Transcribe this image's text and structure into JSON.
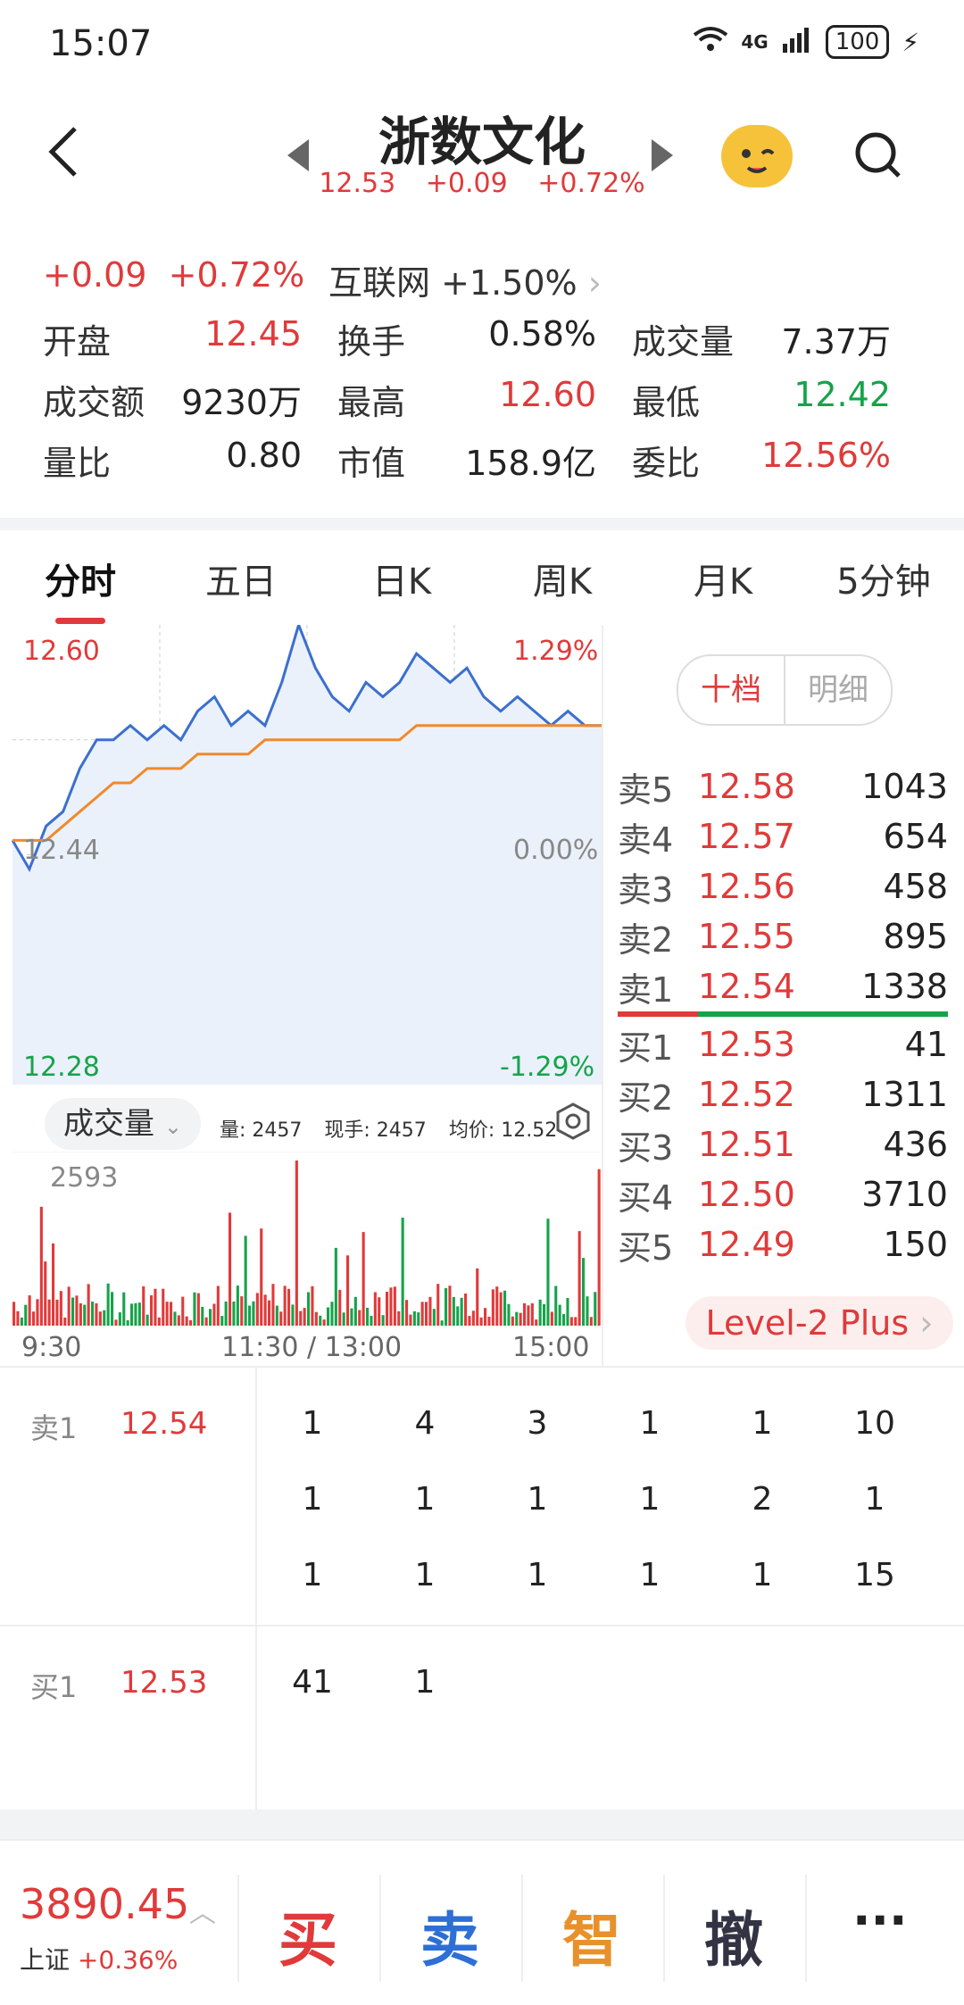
{
  "status": {
    "time": "15:07",
    "network": "4G",
    "battery": "100"
  },
  "header": {
    "title": "浙数文化",
    "price": "12.53",
    "change": "+0.09",
    "change_pct": "+0.72%"
  },
  "summary": {
    "change": "+0.09",
    "change_pct": "+0.72%",
    "sector": "互联网 +1.50%",
    "rows": [
      [
        {
          "label": "开盘",
          "value": "12.45",
          "color": "red"
        },
        {
          "label": "换手",
          "value": "0.58%",
          "color": "black"
        },
        {
          "label": "成交量",
          "value": "7.37万",
          "color": "black"
        }
      ],
      [
        {
          "label": "成交额",
          "value": "9230万",
          "color": "black"
        },
        {
          "label": "最高",
          "value": "12.60",
          "color": "red"
        },
        {
          "label": "最低",
          "value": "12.42",
          "color": "green"
        }
      ],
      [
        {
          "label": "量比",
          "value": "0.80",
          "color": "black"
        },
        {
          "label": "市值",
          "value": "158.9亿",
          "color": "black"
        },
        {
          "label": "委比",
          "value": "12.56%",
          "color": "red"
        }
      ]
    ]
  },
  "tabs": [
    "分时",
    "五日",
    "日K",
    "周K",
    "月K",
    "5分钟"
  ],
  "chart": {
    "ymax_label": "12.60",
    "ymid_label": "12.44",
    "ymin_label": "12.28",
    "pmax_label": "1.29%",
    "pmid_label": "0.00%",
    "pmin_label": "-1.29%",
    "vol_max_label": "2593",
    "vol_pill": "成交量",
    "vol_info": [
      "量: 2457",
      "现手: 2457",
      "均价: 12.52"
    ],
    "time_labels": [
      "9:30",
      "11:30 / 13:00",
      "15:00"
    ]
  },
  "chart_data": {
    "type": "line",
    "series": [
      {
        "name": "",
        "values": [
          12.45,
          12.43,
          12.46,
          12.47,
          12.5,
          12.52,
          12.52,
          12.53,
          12.52,
          12.53,
          12.52,
          12.54,
          12.55,
          12.53,
          12.54,
          12.53,
          12.56,
          12.6,
          12.57,
          12.55,
          12.54,
          12.56,
          12.55,
          12.56,
          12.58,
          12.57,
          12.56,
          12.57,
          12.55,
          12.54,
          12.55,
          12.54,
          12.53,
          12.54,
          12.53,
          12.53
        ]
      },
      {
        "name": "",
        "values": [
          12.45,
          12.45,
          12.45,
          12.46,
          12.47,
          12.48,
          12.49,
          12.49,
          12.5,
          12.5,
          12.5,
          12.51,
          12.51,
          12.51,
          12.51,
          12.52,
          12.52,
          12.52,
          12.52,
          12.52,
          12.52,
          12.52,
          12.52,
          12.52,
          12.53,
          12.53,
          12.53,
          12.53,
          12.53,
          12.53,
          12.53,
          12.53,
          12.53,
          12.53,
          12.53,
          12.53
        ]
      }
    ],
    "ylim": [
      12.28,
      12.6
    ],
    "volume_max": 2593
  },
  "orderbook": {
    "tab_active": "十档",
    "tab_other": "明细",
    "asks": [
      {
        "label": "卖5",
        "price": "12.58",
        "vol": "1043"
      },
      {
        "label": "卖4",
        "price": "12.57",
        "vol": "654"
      },
      {
        "label": "卖3",
        "price": "12.56",
        "vol": "458"
      },
      {
        "label": "卖2",
        "price": "12.55",
        "vol": "895"
      },
      {
        "label": "卖1",
        "price": "12.54",
        "vol": "1338"
      }
    ],
    "bids": [
      {
        "label": "买1",
        "price": "12.53",
        "vol": "41"
      },
      {
        "label": "买2",
        "price": "12.52",
        "vol": "1311"
      },
      {
        "label": "买3",
        "price": "12.51",
        "vol": "436"
      },
      {
        "label": "买4",
        "price": "12.50",
        "vol": "3710"
      },
      {
        "label": "买5",
        "price": "12.49",
        "vol": "150"
      }
    ],
    "level2": "Level-2 Plus"
  },
  "queue": {
    "sell": {
      "label": "卖1",
      "price": "12.54",
      "nums": [
        [
          "1",
          "4",
          "3",
          "1",
          "1",
          "10"
        ],
        [
          "1",
          "1",
          "1",
          "1",
          "2",
          "1"
        ],
        [
          "1",
          "1",
          "1",
          "1",
          "1",
          "15"
        ]
      ]
    },
    "buy": {
      "label": "买1",
      "price": "12.53",
      "nums": [
        [
          "41",
          "1"
        ]
      ]
    }
  },
  "bottom": {
    "index_value": "3890.45",
    "index_name": "上证",
    "index_pct": "+0.36%",
    "actions": [
      "买",
      "卖",
      "智",
      "撤",
      "···"
    ]
  }
}
